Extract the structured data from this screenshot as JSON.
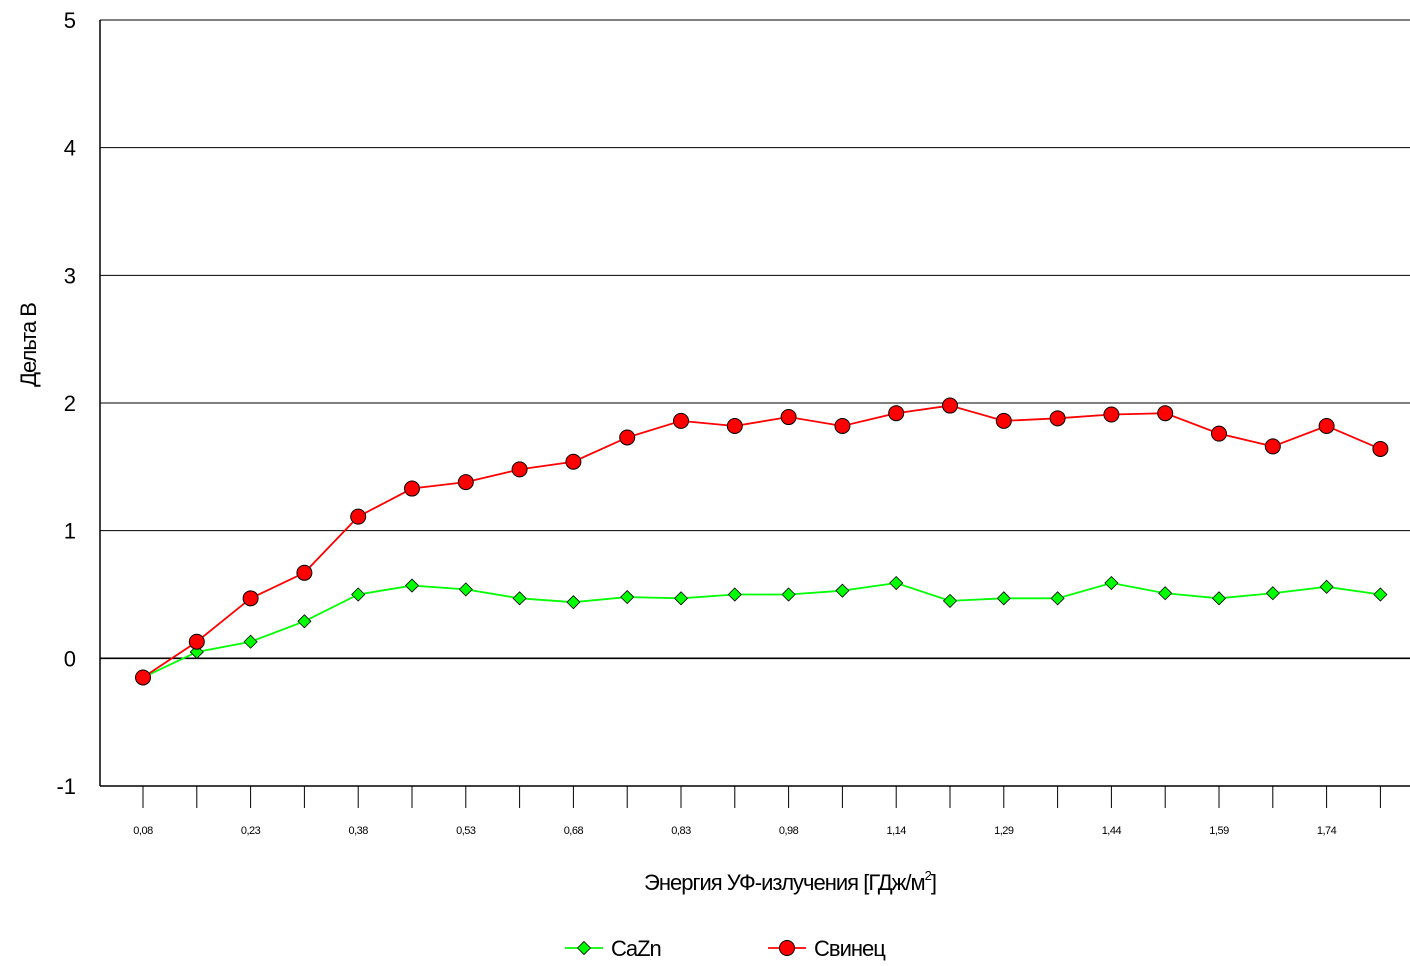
{
  "chart_data": {
    "type": "line",
    "xlabel": "Энергия УФ-излучения [ГДж/м",
    "xlabel_sup": "2",
    "xlabel_end": "]",
    "ylabel": "Дельта В",
    "ylim": [
      -1,
      5
    ],
    "yticks": [
      "-1",
      "0",
      "1",
      "2",
      "3",
      "4",
      "5"
    ],
    "grid": true,
    "legend": "bottom",
    "categories": [
      "0,08",
      "",
      "0,23",
      "",
      "0,38",
      "",
      "0,53",
      "",
      "0,68",
      "",
      "0,83",
      "",
      "0,98",
      "",
      "1,14",
      "",
      "1,29",
      "",
      "1,44",
      "",
      "1,59",
      "",
      "1,74",
      ""
    ],
    "series": [
      {
        "name": "CaZn",
        "color": "#00ff00",
        "marker": "diamond",
        "values": [
          -0.15,
          0.05,
          0.13,
          0.29,
          0.5,
          0.57,
          0.54,
          0.47,
          0.44,
          0.48,
          0.47,
          0.5,
          0.5,
          0.53,
          0.59,
          0.45,
          0.47,
          0.47,
          0.59,
          0.51,
          0.47,
          0.51,
          0.56,
          0.5
        ]
      },
      {
        "name": "Свинец",
        "color": "#ff0000",
        "marker": "circle",
        "values": [
          -0.15,
          0.13,
          0.47,
          0.67,
          1.11,
          1.33,
          1.38,
          1.48,
          1.54,
          1.73,
          1.86,
          1.82,
          1.89,
          1.82,
          1.92,
          1.98,
          1.86,
          1.88,
          1.91,
          1.92,
          1.76,
          1.66,
          1.82,
          1.64
        ]
      }
    ]
  }
}
